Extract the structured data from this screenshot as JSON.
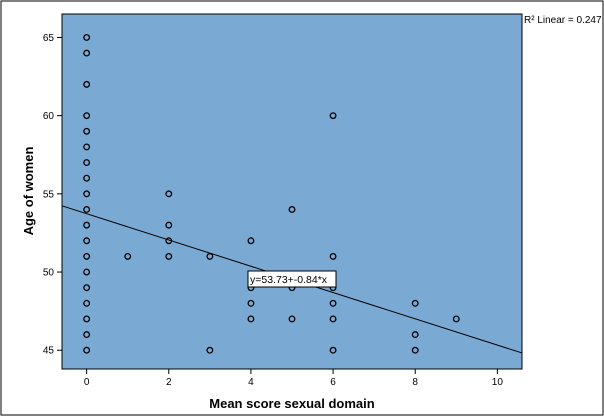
{
  "chart_data": {
    "type": "scatter",
    "title": "",
    "xlabel": "Mean score sexual domain",
    "ylabel": "Age of women",
    "xlim": [
      -0.6,
      10.6
    ],
    "ylim": [
      43.8,
      66.5
    ],
    "xticks": [
      0,
      2,
      4,
      6,
      8,
      10
    ],
    "yticks": [
      45,
      50,
      55,
      60,
      65
    ],
    "grid": false,
    "plot_background": "#7aaad4",
    "marker_color": "#000000",
    "line_color": "#000000",
    "r2_label": "R² Linear = 0.247",
    "fit_equation_label": "y=53.73+-0.84*x",
    "fit_line": {
      "intercept": 53.73,
      "slope": -0.84
    },
    "points": [
      {
        "x": 0,
        "y": 65
      },
      {
        "x": 0,
        "y": 64
      },
      {
        "x": 0,
        "y": 62
      },
      {
        "x": 0,
        "y": 60
      },
      {
        "x": 0,
        "y": 59
      },
      {
        "x": 0,
        "y": 58
      },
      {
        "x": 0,
        "y": 57
      },
      {
        "x": 0,
        "y": 56
      },
      {
        "x": 0,
        "y": 55
      },
      {
        "x": 0,
        "y": 54
      },
      {
        "x": 0,
        "y": 53
      },
      {
        "x": 0,
        "y": 52
      },
      {
        "x": 0,
        "y": 51
      },
      {
        "x": 0,
        "y": 50
      },
      {
        "x": 0,
        "y": 49
      },
      {
        "x": 0,
        "y": 48
      },
      {
        "x": 0,
        "y": 47
      },
      {
        "x": 0,
        "y": 46
      },
      {
        "x": 0,
        "y": 45
      },
      {
        "x": 1,
        "y": 51
      },
      {
        "x": 2,
        "y": 55
      },
      {
        "x": 2,
        "y": 53
      },
      {
        "x": 2,
        "y": 52
      },
      {
        "x": 2,
        "y": 51
      },
      {
        "x": 3,
        "y": 51
      },
      {
        "x": 3,
        "y": 45
      },
      {
        "x": 4,
        "y": 52
      },
      {
        "x": 4,
        "y": 49
      },
      {
        "x": 4,
        "y": 48
      },
      {
        "x": 4,
        "y": 47
      },
      {
        "x": 5,
        "y": 54
      },
      {
        "x": 5,
        "y": 49
      },
      {
        "x": 5,
        "y": 47
      },
      {
        "x": 6,
        "y": 60
      },
      {
        "x": 6,
        "y": 51
      },
      {
        "x": 6,
        "y": 49
      },
      {
        "x": 6,
        "y": 48
      },
      {
        "x": 6,
        "y": 47
      },
      {
        "x": 6,
        "y": 45
      },
      {
        "x": 8,
        "y": 48
      },
      {
        "x": 8,
        "y": 46
      },
      {
        "x": 8,
        "y": 45
      },
      {
        "x": 9,
        "y": 47
      }
    ]
  }
}
